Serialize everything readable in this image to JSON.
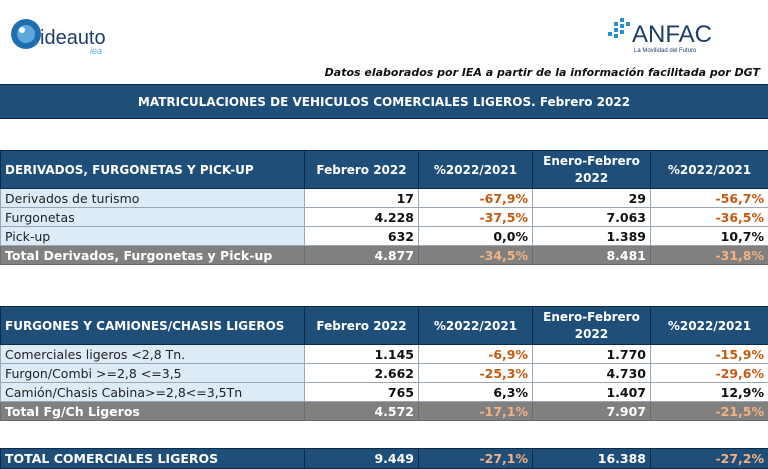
{
  "header": {
    "brand_left": "ideauto",
    "brand_left_sub": "iea",
    "brand_right": "ANFAC",
    "brand_right_sub": "La Movilidad del Futuro",
    "source_note": "Datos elaborados por IEA a partir de la información facilitada por DGT"
  },
  "title": "MATRICULACIONES DE VEHICULOS COMERCIALES LIGEROS. Febrero 2022",
  "colors": {
    "header_blue": "#1f4e79",
    "label_bg": "#ddebf7",
    "negative": "#c55a11",
    "total_gray": "#808080"
  },
  "section1": {
    "headers": [
      "DERIVADOS, FURGONETAS Y PICK-UP",
      "Febrero 2022",
      "%2022/2021",
      "Enero-Febrero 2022",
      "%2022/2021"
    ],
    "rows": [
      [
        "Derivados de turismo",
        "17",
        "-67,9%",
        "29",
        "-56,7%"
      ],
      [
        "Furgonetas",
        "4.228",
        "-37,5%",
        "7.063",
        "-36,5%"
      ],
      [
        "Pick-up",
        "632",
        "0,0%",
        "1.389",
        "10,7%"
      ]
    ],
    "total": [
      "Total Derivados, Furgonetas y Pick-up",
      "4.877",
      "-34,5%",
      "8.481",
      "-31,8%"
    ]
  },
  "section2": {
    "headers": [
      "FURGONES Y CAMIONES/CHASIS LIGEROS",
      "Febrero 2022",
      "%2022/2021",
      "Enero-Febrero 2022",
      "%2022/2021"
    ],
    "rows": [
      [
        "Comerciales ligeros <2,8 Tn.",
        "1.145",
        "-6,9%",
        "1.770",
        "-15,9%"
      ],
      [
        "Furgon/Combi >=2,8 <=3,5",
        "2.662",
        "-25,3%",
        "4.730",
        "-29,6%"
      ],
      [
        "Camión/Chasis Cabina>=2,8<=3,5Tn",
        "765",
        "6,3%",
        "1.407",
        "12,9%"
      ]
    ],
    "total": [
      "Total Fg/Ch Ligeros",
      "4.572",
      "-17,1%",
      "7.907",
      "-21,5%"
    ]
  },
  "grand_total": [
    "TOTAL COMERCIALES LIGEROS",
    "9.449",
    "-27,1%",
    "16.388",
    "-27,2%"
  ]
}
